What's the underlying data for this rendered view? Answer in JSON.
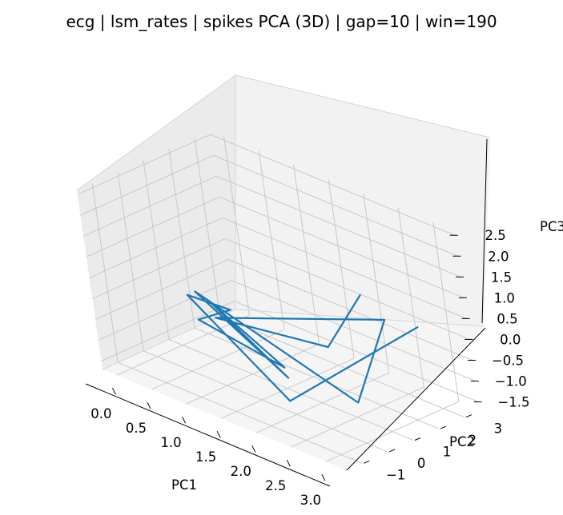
{
  "chart_data": {
    "type": "line",
    "projection": "3d",
    "title": "ecg | lsm_rates | spikes PCA (3D) | gap=10 | win=190",
    "xlabel": "PC1",
    "ylabel": "PC2",
    "zlabel": "PC3",
    "xlim": [
      -0.2,
      3.3
    ],
    "ylim": [
      -1.6,
      3.6
    ],
    "zlim": [
      -1.7,
      2.6
    ],
    "x_ticks": [
      "0.0",
      "0.5",
      "1.0",
      "1.5",
      "2.0",
      "2.5",
      "3.0"
    ],
    "y_ticks": [
      "−1",
      "0",
      "1",
      "2",
      "3"
    ],
    "z_ticks": [
      "−1.5",
      "−1.0",
      "−0.5",
      "0.0",
      "0.5",
      "1.0",
      "1.5",
      "2.0",
      "2.5"
    ],
    "grid": true,
    "colors": {
      "line": "#1f77b4",
      "pane_left": "#ebebeb",
      "pane_back": "#f2f2f2",
      "pane_floor": "#f5f5f5",
      "grid": "#c8c8c8"
    },
    "series": [
      {
        "values": [
          [
            3.0,
            2.5,
            0.4
          ],
          [
            1.8,
            0.3,
            -1.6
          ],
          [
            0.3,
            0.7,
            -0.2
          ],
          [
            0.8,
            1.0,
            -0.3
          ],
          [
            0.5,
            0.5,
            -0.6
          ],
          [
            1.5,
            1.0,
            -1.2
          ],
          [
            0.4,
            1.2,
            -0.4
          ],
          [
            1.7,
            0.6,
            -1.2
          ],
          [
            0.3,
            1.0,
            -0.2
          ],
          [
            3.0,
            -0.1,
            -0.7
          ],
          [
            3.0,
            1.3,
            0.9
          ],
          [
            0.6,
            0.9,
            -0.6
          ],
          [
            2.0,
            1.5,
            -0.5
          ],
          [
            2.4,
            2.0,
            0.9
          ]
        ]
      }
    ]
  }
}
